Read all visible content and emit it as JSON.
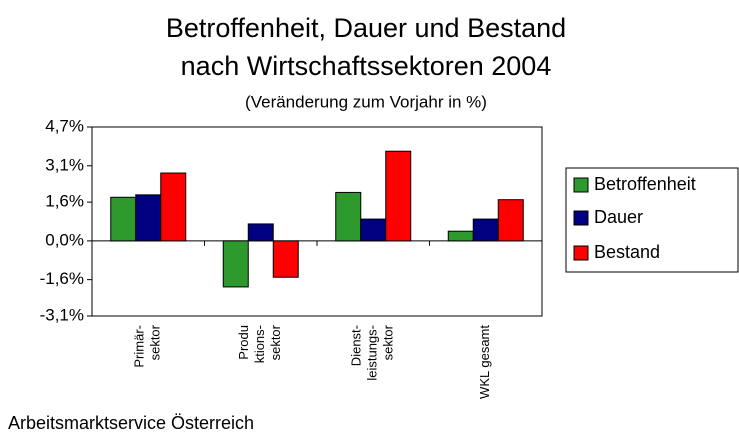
{
  "chart_data": {
    "type": "bar",
    "title": [
      "Betroffenheit, Dauer und Bestand",
      "nach Wirtschaftssektoren 2004"
    ],
    "subtitle": "(Veränderung zum Vorjahr in %)",
    "source": "Arbeitsmarktservice Österreich",
    "categories": [
      [
        "Primär-",
        "sektor"
      ],
      [
        "Produ",
        "ktions-",
        "sektor"
      ],
      [
        "Dienst-",
        "leistungs-",
        "sektor"
      ],
      [
        "WKL gesamt"
      ]
    ],
    "series": [
      {
        "name": "Betroffenheit",
        "color": "#2e9a2e",
        "values": [
          1.8,
          -1.9,
          2.0,
          0.4
        ]
      },
      {
        "name": "Dauer",
        "color": "#000080",
        "values": [
          1.9,
          0.7,
          0.9,
          0.9
        ]
      },
      {
        "name": "Bestand",
        "color": "#ff0000",
        "values": [
          2.8,
          -1.5,
          3.7,
          1.7
        ]
      }
    ],
    "ylim": [
      -3.1,
      4.7
    ],
    "yticks": [
      {
        "value": -3.1,
        "label": "-3,1%"
      },
      {
        "value": -1.6,
        "label": "-1,6%"
      },
      {
        "value": 0,
        "label": "0,0%"
      },
      {
        "value": 1.6,
        "label": "1,6%"
      },
      {
        "value": 3.1,
        "label": "3,1%"
      },
      {
        "value": 4.7,
        "label": "4,7%"
      }
    ],
    "legend": "right"
  }
}
